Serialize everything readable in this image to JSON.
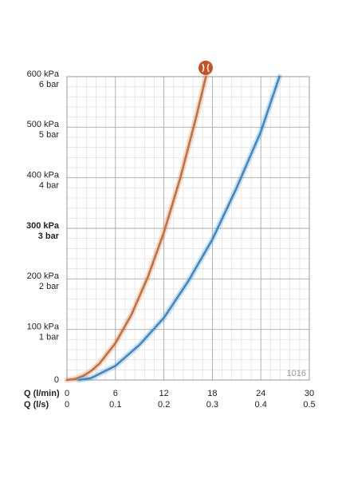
{
  "chart_data": {
    "type": "line",
    "xlim": [
      0,
      30
    ],
    "xticks": [
      0,
      6,
      12,
      18,
      24,
      30
    ],
    "xlabel": "Q (l/min)",
    "x2lim": [
      0,
      0.5
    ],
    "x2ticks": [
      0,
      0.1,
      0.2,
      0.3,
      0.4,
      0.5
    ],
    "x2label": "Q (l/s)",
    "ylim": [
      0,
      600
    ],
    "yticks": [
      {
        "value": 0,
        "label": [
          "0"
        ]
      },
      {
        "value": 100,
        "label": [
          "100 kPa",
          "1 bar"
        ]
      },
      {
        "value": 200,
        "label": [
          "200 kPa",
          "2 bar"
        ]
      },
      {
        "value": 300,
        "label": [
          "300 kPa",
          "3 bar"
        ],
        "bold": true
      },
      {
        "value": 400,
        "label": [
          "400 kPa",
          "4 bar"
        ]
      },
      {
        "value": 500,
        "label": [
          "500 kPa",
          "5 bar"
        ]
      },
      {
        "value": 600,
        "label": [
          "600 kPa",
          "6 bar"
        ]
      }
    ],
    "grid": true,
    "minor_divisions": 5,
    "code": "1016",
    "series": [
      {
        "color": "#c8703a",
        "x": [
          0,
          1,
          2,
          3,
          4,
          6,
          8,
          10,
          12,
          14,
          16,
          17.2
        ],
        "values": [
          0,
          2,
          8,
          18,
          32,
          73,
          130,
          203,
          292,
          398,
          520,
          600
        ]
      },
      {
        "color": "#3c8ac8",
        "x": [
          1.5,
          3,
          6,
          9,
          12,
          15,
          18,
          21,
          24,
          26.3
        ],
        "values": [
          0,
          4,
          28,
          70,
          123,
          195,
          278,
          380,
          491,
          600
        ]
      }
    ]
  }
}
